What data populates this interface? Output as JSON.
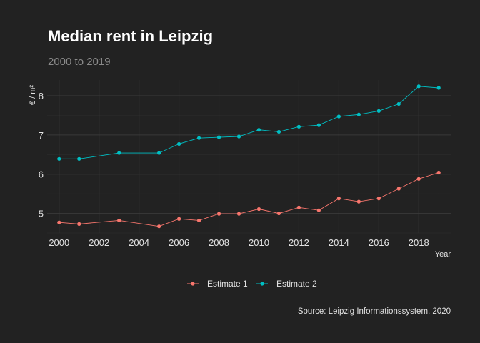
{
  "chart_data": {
    "type": "line",
    "title": "Median rent in Leipzig",
    "subtitle": "2000 to 2019",
    "xlabel": "Year",
    "ylabel": "€ / m²",
    "caption": "Source: Leipzig Informationssystem, 2020",
    "xlim": [
      1999.4,
      2019.6
    ],
    "ylim": [
      4.5,
      8.4
    ],
    "x_ticks": [
      2000,
      2002,
      2004,
      2006,
      2008,
      2010,
      2012,
      2014,
      2016,
      2018
    ],
    "y_ticks": [
      5,
      6,
      7,
      8
    ],
    "grid": true,
    "legend_position": "bottom",
    "series": [
      {
        "name": "Estimate 1",
        "color": "#F8766D",
        "points": [
          {
            "x": 2000,
            "y": 4.77
          },
          {
            "x": 2001,
            "y": 4.73
          },
          {
            "x": 2003,
            "y": 4.82
          },
          {
            "x": 2005,
            "y": 4.67
          },
          {
            "x": 2006,
            "y": 4.86
          },
          {
            "x": 2007,
            "y": 4.82
          },
          {
            "x": 2008,
            "y": 4.99
          },
          {
            "x": 2009,
            "y": 4.99
          },
          {
            "x": 2010,
            "y": 5.11
          },
          {
            "x": 2011,
            "y": 5.0
          },
          {
            "x": 2012,
            "y": 5.15
          },
          {
            "x": 2013,
            "y": 5.08
          },
          {
            "x": 2014,
            "y": 5.38
          },
          {
            "x": 2015,
            "y": 5.3
          },
          {
            "x": 2016,
            "y": 5.38
          },
          {
            "x": 2017,
            "y": 5.63
          },
          {
            "x": 2018,
            "y": 5.88
          },
          {
            "x": 2019,
            "y": 6.04
          }
        ]
      },
      {
        "name": "Estimate 2",
        "color": "#00BFC4",
        "points": [
          {
            "x": 2000,
            "y": 6.39
          },
          {
            "x": 2001,
            "y": 6.39
          },
          {
            "x": 2003,
            "y": 6.54
          },
          {
            "x": 2005,
            "y": 6.54
          },
          {
            "x": 2006,
            "y": 6.77
          },
          {
            "x": 2007,
            "y": 6.92
          },
          {
            "x": 2008,
            "y": 6.94
          },
          {
            "x": 2009,
            "y": 6.96
          },
          {
            "x": 2010,
            "y": 7.13
          },
          {
            "x": 2011,
            "y": 7.08
          },
          {
            "x": 2012,
            "y": 7.21
          },
          {
            "x": 2013,
            "y": 7.25
          },
          {
            "x": 2014,
            "y": 7.47
          },
          {
            "x": 2015,
            "y": 7.52
          },
          {
            "x": 2016,
            "y": 7.61
          },
          {
            "x": 2017,
            "y": 7.79
          },
          {
            "x": 2018,
            "y": 8.24
          },
          {
            "x": 2019,
            "y": 8.2
          }
        ]
      }
    ]
  }
}
